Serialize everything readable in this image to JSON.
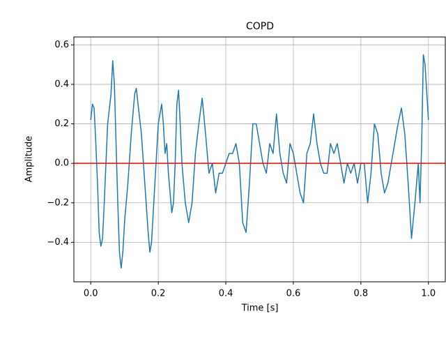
{
  "chart_data": {
    "type": "line",
    "title": "COPD",
    "x_label": "Time [s]",
    "y_label": "Amplitude",
    "x": [
      0,
      0.005,
      0.01,
      0.015,
      0.02,
      0.025,
      0.03,
      0.035,
      0.04,
      0.045,
      0.05,
      0.06,
      0.065,
      0.07,
      0.075,
      0.08,
      0.085,
      0.09,
      0.095,
      0.1,
      0.11,
      0.12,
      0.13,
      0.135,
      0.14,
      0.15,
      0.16,
      0.17,
      0.175,
      0.18,
      0.19,
      0.2,
      0.21,
      0.215,
      0.22,
      0.225,
      0.23,
      0.24,
      0.245,
      0.25,
      0.255,
      0.26,
      0.265,
      0.27,
      0.28,
      0.29,
      0.3,
      0.31,
      0.32,
      0.33,
      0.34,
      0.35,
      0.36,
      0.37,
      0.38,
      0.39,
      0.4,
      0.41,
      0.42,
      0.43,
      0.44,
      0.45,
      0.46,
      0.47,
      0.48,
      0.49,
      0.5,
      0.51,
      0.52,
      0.53,
      0.54,
      0.55,
      0.56,
      0.57,
      0.58,
      0.59,
      0.6,
      0.61,
      0.62,
      0.63,
      0.64,
      0.65,
      0.66,
      0.67,
      0.68,
      0.69,
      0.7,
      0.71,
      0.72,
      0.73,
      0.74,
      0.75,
      0.76,
      0.77,
      0.78,
      0.79,
      0.8,
      0.81,
      0.82,
      0.83,
      0.84,
      0.85,
      0.86,
      0.87,
      0.88,
      0.89,
      0.9,
      0.91,
      0.92,
      0.93,
      0.94,
      0.95,
      0.96,
      0.97,
      0.975,
      0.98,
      0.985,
      0.99,
      1.0
    ],
    "series": [
      {
        "color": "#1f77b4",
        "values": [
          0.22,
          0.3,
          0.28,
          0.1,
          -0.1,
          -0.35,
          -0.42,
          -0.38,
          -0.2,
          0.0,
          0.2,
          0.35,
          0.52,
          0.4,
          0.1,
          -0.2,
          -0.45,
          -0.53,
          -0.45,
          -0.3,
          -0.1,
          0.15,
          0.35,
          0.38,
          0.3,
          0.15,
          -0.1,
          -0.35,
          -0.45,
          -0.4,
          -0.1,
          0.2,
          0.3,
          0.2,
          0.05,
          0.1,
          -0.05,
          -0.25,
          -0.2,
          0.0,
          0.3,
          0.37,
          0.2,
          0.0,
          -0.2,
          -0.3,
          -0.2,
          0.05,
          0.2,
          0.33,
          0.15,
          -0.05,
          0.0,
          -0.15,
          -0.05,
          -0.05,
          0.0,
          0.05,
          0.05,
          0.1,
          0.0,
          -0.3,
          -0.35,
          -0.1,
          0.2,
          0.2,
          0.1,
          0.0,
          -0.05,
          0.1,
          0.05,
          0.25,
          0.05,
          -0.05,
          -0.1,
          0.1,
          0.05,
          -0.05,
          -0.15,
          -0.2,
          0.05,
          0.1,
          0.25,
          0.1,
          0.0,
          -0.05,
          -0.05,
          0.1,
          0.05,
          0.1,
          0.0,
          -0.1,
          0.0,
          -0.05,
          0.0,
          -0.1,
          0.0,
          0.0,
          -0.2,
          -0.05,
          0.2,
          0.15,
          -0.05,
          -0.15,
          -0.1,
          0.0,
          0.1,
          0.2,
          0.28,
          0.15,
          -0.1,
          -0.38,
          -0.2,
          0.0,
          -0.2,
          0.1,
          0.55,
          0.5,
          0.22
        ]
      }
    ],
    "hlines": [
      {
        "y": 0,
        "color": "#ff0000"
      }
    ],
    "xlim": [
      -0.05,
      1.05
    ],
    "ylim": [
      -0.6,
      0.64
    ],
    "xticks": [
      {
        "value": 0,
        "label": "0.0"
      },
      {
        "value": 0.2,
        "label": "0.2"
      },
      {
        "value": 0.4,
        "label": "0.4"
      },
      {
        "value": 0.6,
        "label": "0.6"
      },
      {
        "value": 0.8,
        "label": "0.8"
      },
      {
        "value": 1,
        "label": "1.0"
      }
    ],
    "yticks": [
      {
        "value": -0.4,
        "label": "−0.4"
      },
      {
        "value": -0.2,
        "label": "−0.2"
      },
      {
        "value": 0,
        "label": "0.0"
      },
      {
        "value": 0.2,
        "label": "0.2"
      },
      {
        "value": 0.4,
        "label": "0.4"
      },
      {
        "value": 0.6,
        "label": "0.6"
      }
    ],
    "grid": true
  }
}
